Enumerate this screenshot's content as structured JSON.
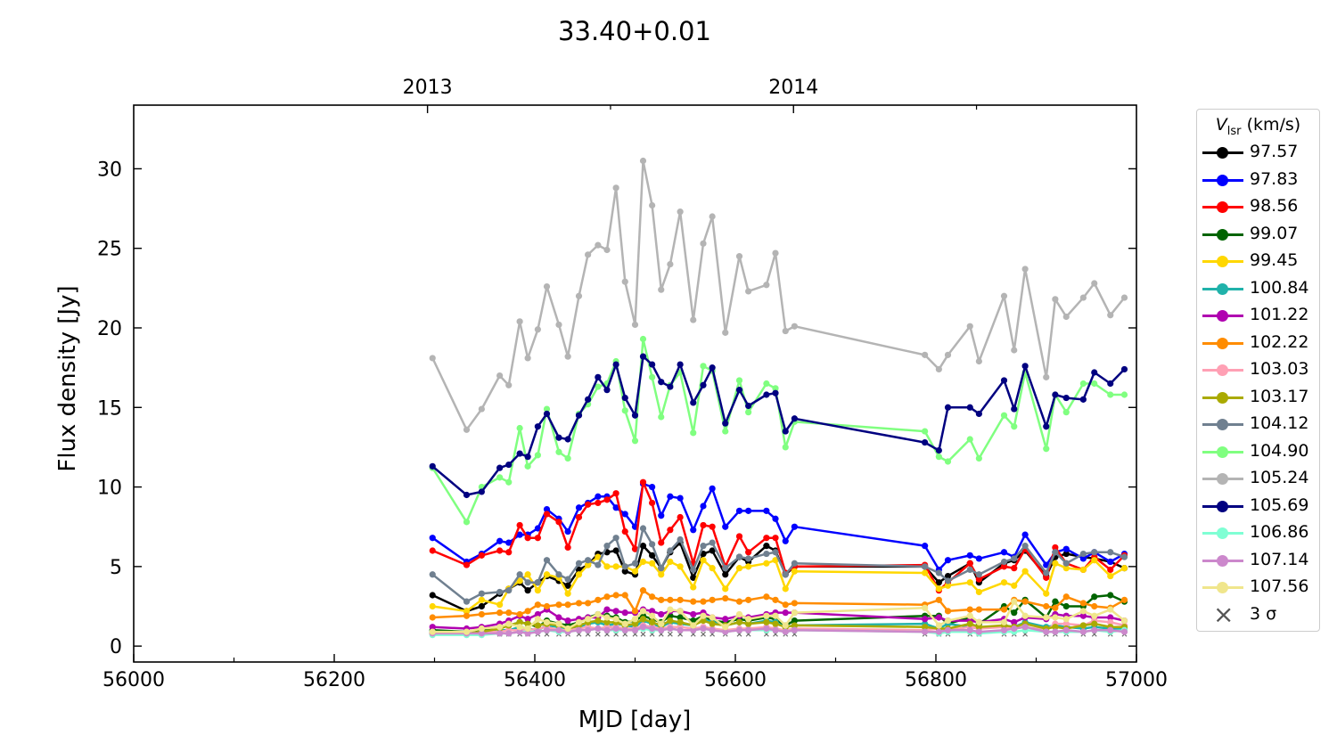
{
  "chart_data": {
    "type": "line",
    "title": "33.40+0.01",
    "xlabel": "MJD [day]",
    "ylabel": "Flux density [Jy]",
    "xlim": [
      56000,
      57000
    ],
    "ylim": [
      -1,
      34
    ],
    "xticks": [
      "56000",
      "56200",
      "56400",
      "56600",
      "56800",
      "57000"
    ],
    "xtick_values": [
      56000,
      56200,
      56400,
      56600,
      56800,
      57000
    ],
    "yticks": [
      "0",
      "5",
      "10",
      "15",
      "20",
      "25",
      "30"
    ],
    "ytick_values": [
      0,
      5,
      10,
      15,
      20,
      25,
      30
    ],
    "top_axis": {
      "ticks": [
        "2013",
        "2014"
      ],
      "mjd": [
        56293,
        56658
      ]
    },
    "legend_title": "V_lsr (km/s)",
    "legend_title_main": "V",
    "legend_title_sub": "lsr",
    "legend_title_unit": "(km/s)",
    "legend_placement": "outside-right",
    "sigma_label": "3 σ",
    "sigma3_level": 0.75,
    "x": [
      56298,
      56332,
      56347,
      56365,
      56374,
      56385,
      56393,
      56403,
      56412,
      56424,
      56433,
      56444,
      56453,
      56463,
      56472,
      56481,
      56490,
      56500,
      56508,
      56517,
      56526,
      56535,
      56545,
      56558,
      56568,
      56577,
      56590,
      56604,
      56613,
      56631,
      56640,
      56650,
      56659,
      56789,
      56803,
      56812,
      56834,
      56843,
      56868,
      56878,
      56889,
      56910,
      56919,
      56930,
      56947,
      56958,
      56974,
      56988
    ],
    "series": [
      {
        "name": "97.57",
        "color": "#000000",
        "values": [
          3.2,
          2.2,
          2.5,
          3.3,
          3.6,
          4.0,
          3.5,
          4.0,
          4.4,
          4.1,
          3.8,
          4.8,
          5.1,
          5.8,
          5.9,
          6.0,
          4.7,
          4.5,
          6.3,
          5.7,
          4.9,
          5.9,
          6.5,
          4.3,
          5.8,
          6.0,
          4.5,
          5.6,
          5.3,
          6.3,
          6.0,
          4.5,
          5.0,
          5.0,
          4.0,
          4.4,
          5.2,
          4.0,
          5.2,
          5.4,
          6.0,
          4.4,
          5.6,
          5.8,
          5.6,
          5.5,
          5.3,
          4.9
        ]
      },
      {
        "name": "97.83",
        "color": "#0000ff",
        "values": [
          6.8,
          5.3,
          5.8,
          6.6,
          6.5,
          7.0,
          7.0,
          7.4,
          8.6,
          8.0,
          7.2,
          8.7,
          9.0,
          9.4,
          9.4,
          8.7,
          8.3,
          7.5,
          10.2,
          10.0,
          8.2,
          9.4,
          9.3,
          7.3,
          8.8,
          9.9,
          7.5,
          8.5,
          8.5,
          8.5,
          8.0,
          6.6,
          7.5,
          6.3,
          4.8,
          5.4,
          5.7,
          5.5,
          5.9,
          5.6,
          7.0,
          5.1,
          5.9,
          6.1,
          5.5,
          5.9,
          5.3,
          5.8
        ]
      },
      {
        "name": "98.56",
        "color": "#ff0000",
        "values": [
          6.0,
          5.1,
          5.7,
          6.0,
          5.9,
          7.6,
          6.8,
          6.8,
          8.3,
          7.8,
          6.2,
          8.1,
          8.9,
          9.0,
          9.2,
          9.6,
          7.2,
          6.1,
          10.3,
          9.0,
          6.5,
          7.3,
          8.1,
          5.2,
          7.6,
          7.5,
          5.0,
          6.9,
          5.9,
          6.8,
          6.8,
          4.6,
          5.0,
          5.1,
          3.5,
          4.0,
          5.2,
          4.2,
          5.0,
          4.9,
          6.1,
          4.3,
          6.2,
          5.2,
          4.8,
          5.6,
          4.8,
          5.7
        ]
      },
      {
        "name": "99.07",
        "color": "#006400",
        "values": [
          1.0,
          0.9,
          1.0,
          1.1,
          1.3,
          1.5,
          1.4,
          1.2,
          1.6,
          1.4,
          1.3,
          1.5,
          1.8,
          2.0,
          1.9,
          1.8,
          1.5,
          1.6,
          1.9,
          1.7,
          1.5,
          1.9,
          1.8,
          1.6,
          1.9,
          1.6,
          1.5,
          1.7,
          1.6,
          1.8,
          1.7,
          1.3,
          1.6,
          1.9,
          1.9,
          1.4,
          1.8,
          1.4,
          2.5,
          2.1,
          2.9,
          1.8,
          2.8,
          2.5,
          2.5,
          3.1,
          3.2,
          2.8
        ]
      },
      {
        "name": "99.45",
        "color": "#ffd700",
        "values": [
          2.5,
          2.2,
          2.9,
          2.6,
          3.6,
          4.1,
          4.5,
          3.5,
          4.5,
          4.3,
          3.3,
          4.5,
          5.1,
          5.6,
          5.0,
          5.0,
          5.0,
          4.7,
          5.3,
          5.2,
          4.5,
          5.3,
          5.0,
          3.7,
          5.4,
          4.9,
          3.6,
          4.9,
          5.0,
          5.2,
          5.4,
          3.6,
          4.7,
          4.6,
          3.6,
          3.8,
          4.0,
          3.4,
          4.0,
          3.8,
          4.7,
          3.3,
          5.2,
          4.9,
          4.8,
          5.4,
          4.4,
          4.9
        ]
      },
      {
        "name": "100.84",
        "color": "#20b2aa",
        "values": [
          0.9,
          0.8,
          0.9,
          1.0,
          1.0,
          1.2,
          1.1,
          1.0,
          1.3,
          1.2,
          1.1,
          1.2,
          1.4,
          1.5,
          1.3,
          1.4,
          1.3,
          1.2,
          1.6,
          1.4,
          1.2,
          1.5,
          1.4,
          1.3,
          1.7,
          1.5,
          1.3,
          1.5,
          1.4,
          1.6,
          1.5,
          1.2,
          1.3,
          1.4,
          1.1,
          1.4,
          1.2,
          1.1,
          1.3,
          1.2,
          1.5,
          1.2,
          1.3,
          1.2,
          1.1,
          1.2,
          1.1,
          1.1
        ]
      },
      {
        "name": "101.22",
        "color": "#b000b0",
        "values": [
          1.2,
          1.1,
          1.2,
          1.4,
          1.6,
          1.9,
          1.7,
          2.0,
          2.3,
          1.8,
          1.6,
          1.7,
          1.8,
          1.8,
          2.3,
          2.2,
          2.1,
          2.1,
          2.3,
          2.2,
          2.0,
          2.2,
          2.2,
          2.0,
          2.1,
          1.8,
          1.7,
          1.9,
          1.8,
          2.0,
          2.1,
          2.1,
          2.1,
          1.7,
          1.8,
          1.6,
          1.6,
          1.5,
          1.7,
          1.5,
          1.8,
          1.7,
          2.0,
          1.9,
          1.9,
          1.8,
          1.8,
          1.6
        ]
      },
      {
        "name": "102.22",
        "color": "#ff8c00",
        "values": [
          1.8,
          1.9,
          2.0,
          2.1,
          2.1,
          2.0,
          2.2,
          2.6,
          2.5,
          2.6,
          2.6,
          2.7,
          2.7,
          2.9,
          3.1,
          3.2,
          3.2,
          2.2,
          3.5,
          3.1,
          2.9,
          2.9,
          2.9,
          2.8,
          2.8,
          2.9,
          3.0,
          2.8,
          2.9,
          3.1,
          2.9,
          2.6,
          2.7,
          2.6,
          2.9,
          2.2,
          2.3,
          2.3,
          2.3,
          2.9,
          2.8,
          2.5,
          2.4,
          3.1,
          2.7,
          2.5,
          2.4,
          2.9
        ]
      },
      {
        "name": "103.03",
        "color": "#ffa0b4",
        "values": [
          0.8,
          0.8,
          0.9,
          0.9,
          1.0,
          1.0,
          1.0,
          1.1,
          1.2,
          1.0,
          1.0,
          1.1,
          1.2,
          1.1,
          1.2,
          1.2,
          1.1,
          1.1,
          1.3,
          1.2,
          1.1,
          1.2,
          1.2,
          1.1,
          1.2,
          1.1,
          1.0,
          1.1,
          1.1,
          1.2,
          1.1,
          1.0,
          1.1,
          1.0,
          1.1,
          1.0,
          1.2,
          1.1,
          1.2,
          1.1,
          1.2,
          1.0,
          1.4,
          1.4,
          1.3,
          1.6,
          1.5,
          1.3
        ]
      },
      {
        "name": "103.17",
        "color": "#aaaa00",
        "values": [
          0.8,
          0.8,
          0.9,
          1.1,
          1.3,
          1.5,
          1.4,
          1.3,
          1.4,
          1.3,
          1.1,
          1.3,
          1.5,
          1.6,
          1.5,
          1.5,
          1.3,
          1.4,
          1.7,
          1.5,
          1.3,
          1.6,
          1.5,
          1.3,
          1.6,
          1.4,
          1.3,
          1.5,
          1.4,
          1.5,
          1.4,
          1.2,
          1.3,
          1.2,
          1.1,
          1.1,
          1.4,
          1.2,
          1.3,
          1.2,
          1.4,
          1.1,
          1.2,
          1.1,
          1.3,
          1.4,
          1.2,
          1.2
        ]
      },
      {
        "name": "104.12",
        "color": "#708090",
        "values": [
          4.5,
          2.8,
          3.3,
          3.4,
          3.5,
          4.5,
          4.0,
          4.0,
          5.4,
          4.5,
          4.2,
          5.2,
          5.4,
          5.1,
          6.3,
          6.8,
          5.0,
          5.2,
          7.4,
          6.4,
          4.9,
          6.0,
          6.7,
          4.8,
          6.3,
          6.5,
          4.9,
          5.6,
          5.5,
          5.8,
          5.9,
          4.5,
          5.2,
          5.0,
          4.6,
          4.1,
          4.8,
          4.5,
          5.3,
          5.5,
          6.3,
          4.6,
          5.9,
          5.2,
          5.8,
          5.9,
          5.9,
          5.6
        ]
      },
      {
        "name": "104.90",
        "color": "#80ff80",
        "values": [
          11.2,
          7.8,
          10.0,
          10.6,
          10.3,
          13.7,
          11.3,
          12.0,
          14.9,
          12.2,
          11.8,
          14.6,
          15.2,
          16.3,
          16.5,
          17.9,
          14.8,
          12.9,
          19.3,
          16.9,
          14.4,
          16.4,
          17.2,
          13.4,
          17.6,
          17.3,
          13.5,
          16.7,
          14.7,
          16.5,
          16.2,
          12.5,
          14.1,
          13.5,
          11.9,
          11.6,
          13.0,
          11.8,
          14.5,
          13.8,
          17.2,
          12.4,
          15.8,
          14.7,
          16.5,
          16.5,
          15.8,
          15.8
        ]
      },
      {
        "name": "105.24",
        "color": "#b4b4b4",
        "values": [
          18.1,
          13.6,
          14.9,
          17.0,
          16.4,
          20.4,
          18.1,
          19.9,
          22.6,
          20.2,
          18.2,
          22.0,
          24.6,
          25.2,
          24.9,
          28.8,
          22.9,
          20.2,
          30.5,
          27.7,
          22.4,
          24.0,
          27.3,
          20.5,
          25.3,
          27.0,
          19.7,
          24.5,
          22.3,
          22.7,
          24.7,
          19.8,
          20.1,
          18.3,
          17.4,
          18.3,
          20.1,
          17.9,
          22.0,
          18.6,
          23.7,
          16.9,
          21.8,
          20.7,
          21.9,
          22.8,
          20.8,
          21.9
        ]
      },
      {
        "name": "105.69",
        "color": "#000080",
        "values": [
          11.3,
          9.5,
          9.7,
          11.2,
          11.4,
          12.1,
          11.9,
          13.8,
          14.6,
          13.1,
          13.0,
          14.5,
          15.5,
          16.9,
          16.1,
          17.7,
          15.6,
          14.5,
          18.2,
          17.7,
          16.6,
          16.3,
          17.7,
          15.3,
          16.4,
          17.5,
          14.0,
          16.1,
          15.1,
          15.8,
          15.9,
          13.5,
          14.3,
          12.8,
          12.3,
          15.0,
          15.0,
          14.6,
          16.7,
          14.9,
          17.6,
          13.8,
          15.8,
          15.6,
          15.5,
          17.2,
          16.5,
          17.4
        ]
      },
      {
        "name": "106.86",
        "color": "#7fffd4",
        "values": [
          0.7,
          0.7,
          0.7,
          0.8,
          0.8,
          0.9,
          0.9,
          0.9,
          1.0,
          0.9,
          0.9,
          1.0,
          1.0,
          1.1,
          1.0,
          1.0,
          1.0,
          1.0,
          1.1,
          1.0,
          1.0,
          1.1,
          1.0,
          1.0,
          1.1,
          1.0,
          0.9,
          1.0,
          1.0,
          1.0,
          1.0,
          0.9,
          1.0,
          0.9,
          0.8,
          0.9,
          0.9,
          0.8,
          0.9,
          0.9,
          1.0,
          0.9,
          0.9,
          0.9,
          0.9,
          1.0,
          0.9,
          1.0
        ]
      },
      {
        "name": "107.14",
        "color": "#cc88cc",
        "values": [
          0.8,
          0.8,
          0.8,
          0.8,
          0.8,
          0.9,
          0.8,
          0.9,
          1.0,
          1.0,
          0.9,
          1.0,
          1.0,
          1.1,
          1.0,
          1.1,
          1.0,
          1.0,
          1.2,
          1.1,
          1.0,
          1.1,
          1.0,
          1.0,
          1.1,
          1.0,
          0.9,
          1.0,
          1.0,
          1.1,
          1.0,
          0.9,
          1.0,
          0.9,
          0.9,
          1.0,
          1.0,
          0.9,
          1.0,
          1.1,
          1.2,
          0.9,
          0.9,
          1.0,
          0.9,
          1.0,
          1.0,
          0.9
        ]
      },
      {
        "name": "107.56",
        "color": "#f0e68c",
        "values": [
          0.9,
          0.9,
          1.1,
          1.2,
          1.4,
          1.2,
          1.1,
          1.7,
          1.5,
          1.4,
          1.1,
          1.5,
          1.7,
          2.0,
          1.8,
          1.7,
          1.4,
          1.7,
          2.2,
          1.9,
          1.4,
          2.3,
          2.2,
          1.3,
          1.9,
          1.8,
          1.2,
          2.0,
          1.7,
          1.9,
          1.9,
          1.3,
          2.1,
          2.4,
          1.3,
          1.6,
          1.9,
          1.5,
          1.5,
          2.8,
          1.9,
          1.8,
          1.8,
          1.7,
          2.2,
          1.9,
          2.3,
          1.6
        ]
      }
    ]
  }
}
